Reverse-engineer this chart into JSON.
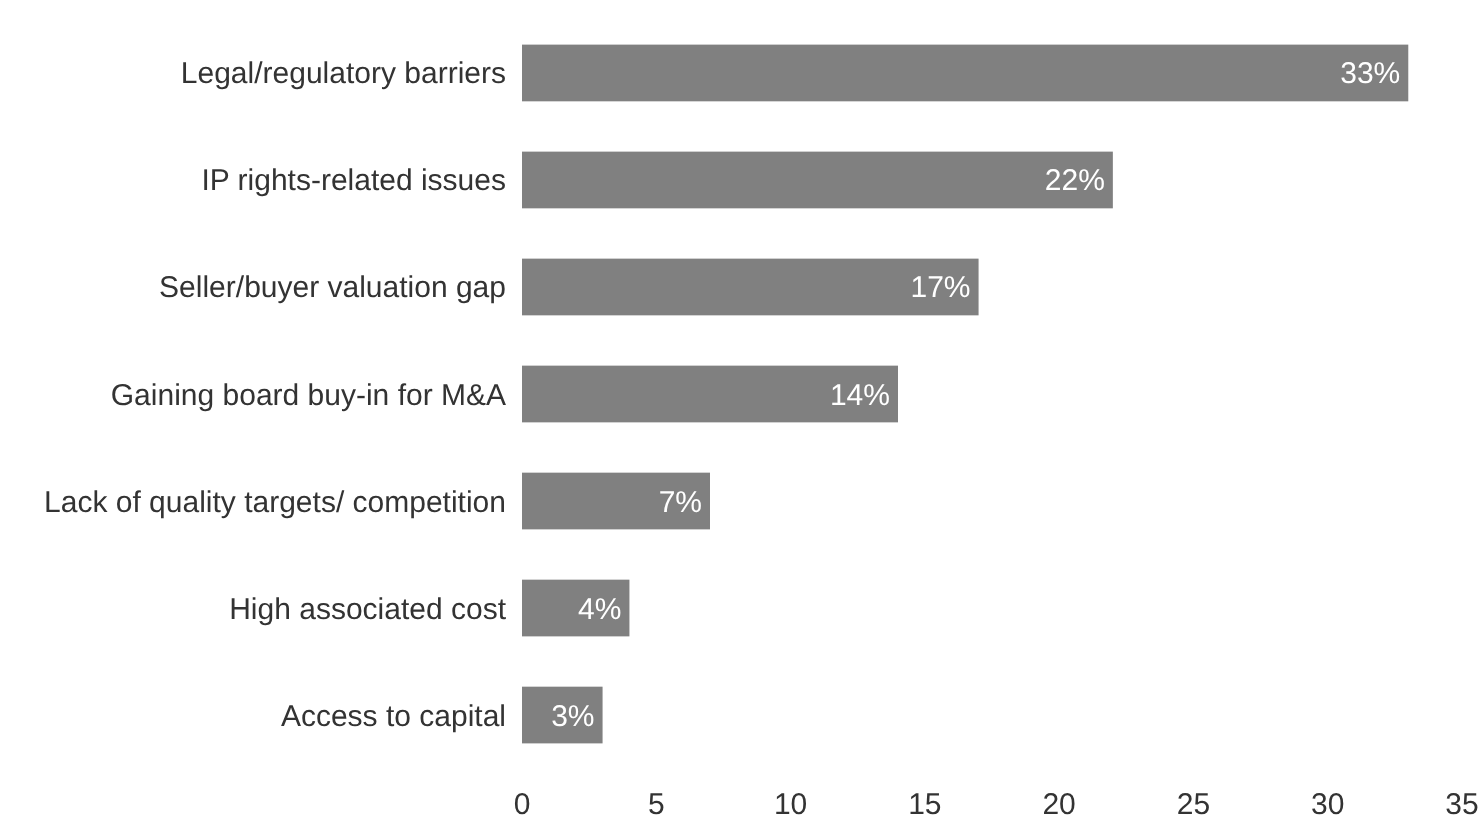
{
  "chart_data": {
    "type": "bar",
    "orientation": "horizontal",
    "categories": [
      "Legal/regulatory barriers",
      "IP rights-related issues",
      "Seller/buyer valuation gap",
      "Gaining board buy-in for M&A",
      "Lack of quality targets/ competition",
      "High associated cost",
      "Access to capital"
    ],
    "values": [
      33,
      22,
      17,
      14,
      7,
      4,
      3
    ],
    "value_labels": [
      "33%",
      "22%",
      "17%",
      "14%",
      "7%",
      "4%",
      "3%"
    ],
    "color": "#808080",
    "xlim": [
      0,
      35
    ],
    "xticks": [
      0,
      5,
      10,
      15,
      20,
      25,
      30,
      35
    ],
    "grid": false
  }
}
